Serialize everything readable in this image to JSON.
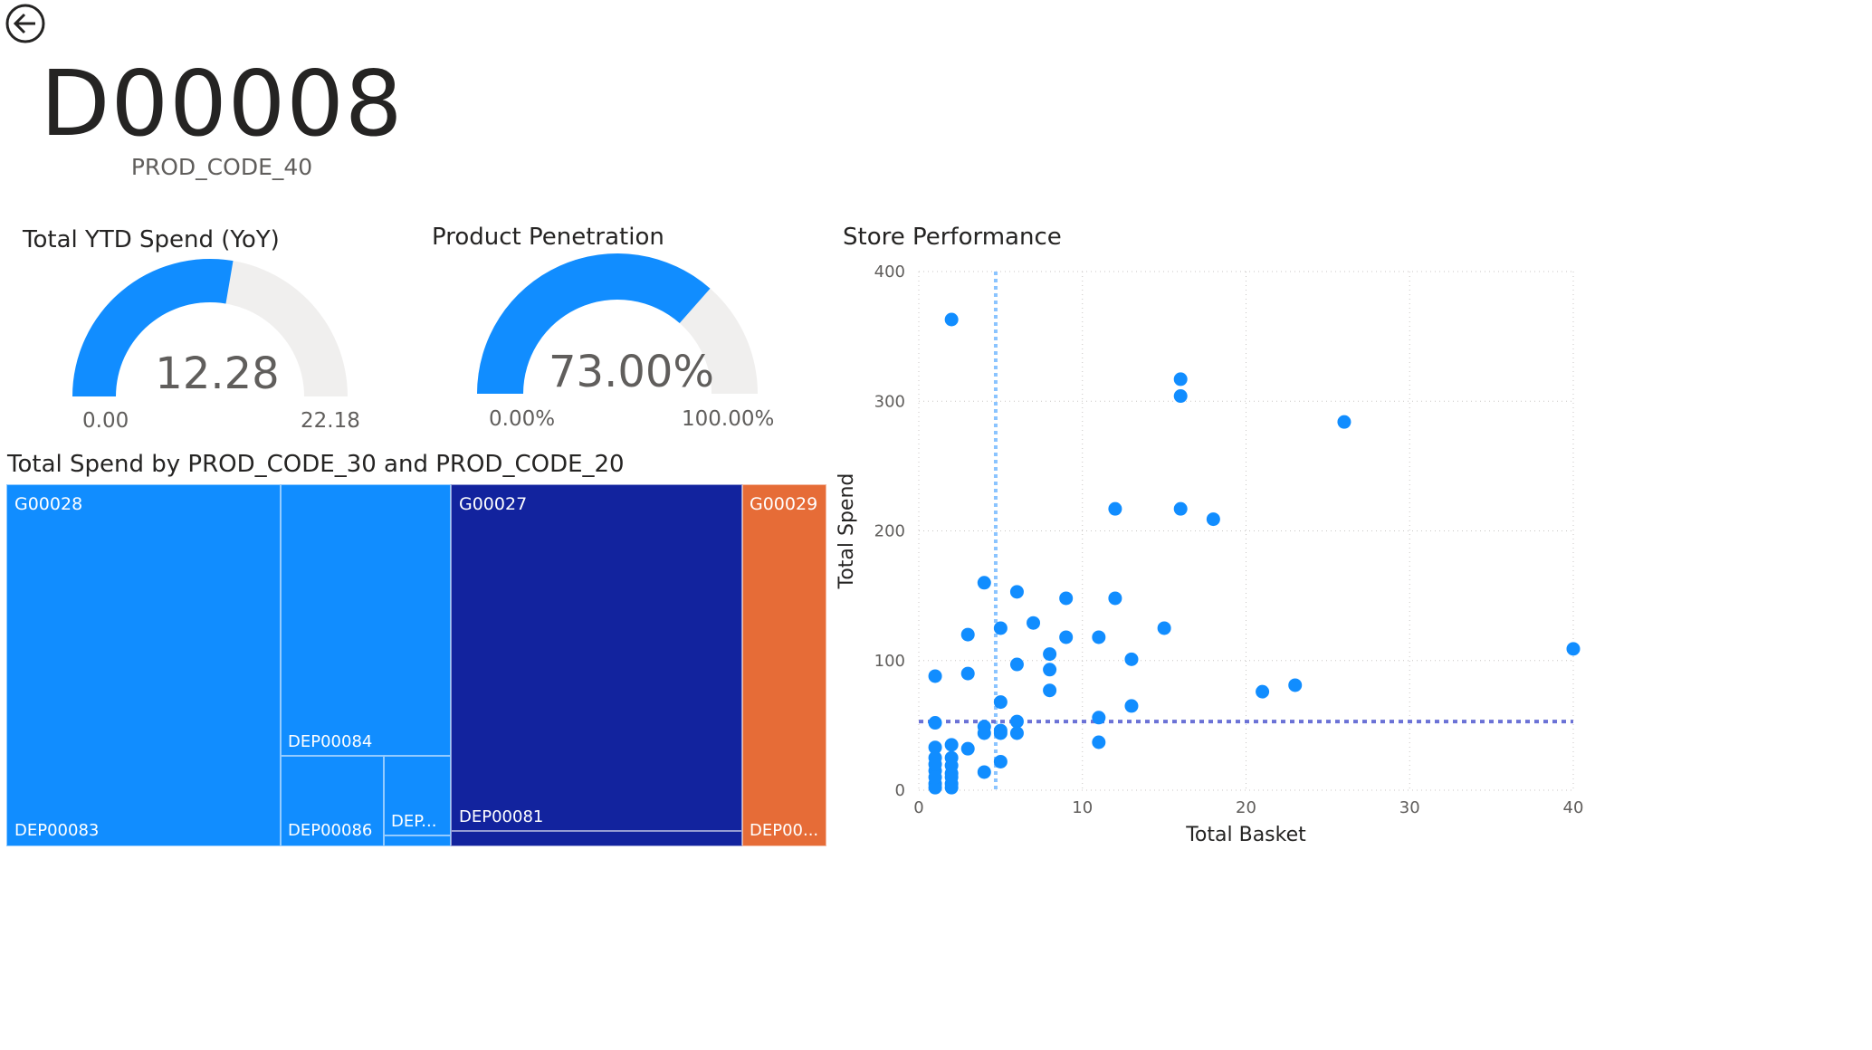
{
  "header": {
    "back_icon": "back-arrow-icon",
    "title": "D00008",
    "subtitle": "PROD_CODE_40"
  },
  "gauge_ytd": {
    "title": "Total YTD Spend (YoY)",
    "value": "12.28",
    "min": "0.00",
    "max": "22.18",
    "fill_fraction": 0.5537,
    "color": "#118DFF"
  },
  "gauge_penetration": {
    "title": "Product Penetration",
    "value": "73.00%",
    "min": "0.00%",
    "max": "100.00%",
    "fill_fraction": 0.73,
    "color": "#118DFF"
  },
  "treemap": {
    "title": "Total Spend by PROD_CODE_30 and PROD_CODE_20",
    "groups": [
      {
        "label": "G00028",
        "color": "#118DFF",
        "children": [
          "DEP00083",
          "DEP00084",
          "DEP00086",
          "DEP..."
        ]
      },
      {
        "label": "G00027",
        "color": "#12239E",
        "children": [
          "DEP00081"
        ]
      },
      {
        "label": "G00029",
        "color": "#E66C37",
        "children": [
          "DEP00..."
        ]
      }
    ]
  },
  "chart_data": {
    "type": "scatter",
    "title": "Store Performance",
    "xlabel": "Total Basket",
    "ylabel": "Total Spend",
    "xlim": [
      0,
      40
    ],
    "ylim": [
      0,
      400
    ],
    "xticks": [
      "0",
      "10",
      "20",
      "30",
      "40"
    ],
    "yticks": [
      "0",
      "100",
      "200",
      "300",
      "400"
    ],
    "grid": true,
    "point_color": "#118DFF",
    "reference_lines": [
      {
        "axis": "x",
        "value": 4.7,
        "color": "#8AC4FF"
      },
      {
        "axis": "y",
        "value": 53,
        "color": "#6B72D6"
      }
    ],
    "points": [
      [
        2,
        363
      ],
      [
        16,
        317
      ],
      [
        16,
        304
      ],
      [
        26,
        284
      ],
      [
        12,
        217
      ],
      [
        16,
        217
      ],
      [
        18,
        209
      ],
      [
        4,
        160
      ],
      [
        6,
        153
      ],
      [
        9,
        148
      ],
      [
        12,
        148
      ],
      [
        7,
        129
      ],
      [
        5,
        125
      ],
      [
        3,
        120
      ],
      [
        9,
        118
      ],
      [
        11,
        118
      ],
      [
        15,
        125
      ],
      [
        40,
        109
      ],
      [
        8,
        105
      ],
      [
        13,
        101
      ],
      [
        6,
        97
      ],
      [
        8,
        93
      ],
      [
        1,
        88
      ],
      [
        3,
        90
      ],
      [
        23,
        81
      ],
      [
        21,
        76
      ],
      [
        8,
        77
      ],
      [
        5,
        68
      ],
      [
        13,
        65
      ],
      [
        11,
        56
      ],
      [
        1,
        52
      ],
      [
        6,
        53
      ],
      [
        4,
        49
      ],
      [
        4,
        44
      ],
      [
        5,
        44
      ],
      [
        6,
        44
      ],
      [
        5,
        46
      ],
      [
        11,
        37
      ],
      [
        2,
        35
      ],
      [
        1,
        33
      ],
      [
        3,
        32
      ],
      [
        5,
        22
      ],
      [
        1,
        25
      ],
      [
        2,
        25
      ],
      [
        4,
        14
      ],
      [
        1,
        15
      ],
      [
        2,
        13
      ],
      [
        1,
        5
      ],
      [
        2,
        5
      ],
      [
        1,
        2
      ],
      [
        2,
        2
      ],
      [
        1,
        10
      ],
      [
        2,
        10
      ],
      [
        1,
        20
      ],
      [
        2,
        19
      ]
    ]
  }
}
